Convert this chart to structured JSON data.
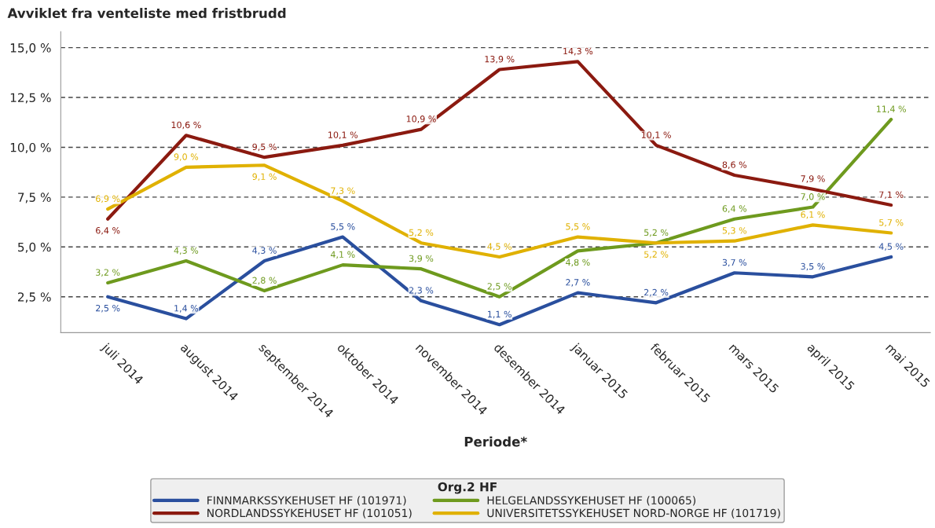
{
  "chart_data": {
    "type": "line",
    "title": "Avviklet fra venteliste med fristbrudd",
    "xlabel": "Periode*",
    "legend_title": "Org.2 HF",
    "categories": [
      "juli 2014",
      "august 2014",
      "september 2014",
      "oktober 2014",
      "november 2014",
      "desember 2014",
      "januar 2015",
      "februar 2015",
      "mars 2015",
      "april 2015",
      "mai 2015"
    ],
    "series": [
      {
        "name": "FINNMARKSSYKEHUSET HF (101971)",
        "color": "#2a4f9e",
        "values": [
          2.5,
          1.4,
          4.3,
          5.5,
          2.3,
          1.1,
          2.7,
          2.2,
          3.7,
          3.5,
          4.5
        ],
        "value_labels": [
          "2,5 %",
          "1,4 %",
          "4,3 %",
          "5,5 %",
          "2,3 %",
          "1,1 %",
          "2,7 %",
          "2,2 %",
          "3,7 %",
          "3,5 %",
          "4,5 %"
        ]
      },
      {
        "name": "HELGELANDSSYKEHUSET HF (100065)",
        "color": "#6e9a1e",
        "values": [
          3.2,
          4.3,
          2.8,
          4.1,
          3.9,
          2.5,
          4.8,
          5.2,
          6.4,
          7.0,
          11.4
        ],
        "value_labels": [
          "3,2 %",
          "4,3 %",
          "2,8 %",
          "4,1 %",
          "3,9 %",
          "2,5 %",
          "4,8 %",
          "5,2 %",
          "6,4 %",
          "7,0 %",
          "11,4 %"
        ]
      },
      {
        "name": "NORDLANDSSYKEHUSET HF (101051)",
        "color": "#8b1a10",
        "values": [
          6.4,
          10.6,
          9.5,
          10.1,
          10.9,
          13.9,
          14.3,
          10.1,
          8.6,
          7.9,
          7.1
        ],
        "value_labels": [
          "6,4 %",
          "10,6 %",
          "9,5 %",
          "10,1 %",
          "10,9 %",
          "13,9 %",
          "14,3 %",
          "10,1 %",
          "8,6 %",
          "7,9 %",
          "7,1 %"
        ]
      },
      {
        "name": "UNIVERSITETSSYKEHUSET NORD-NORGE HF (101719)",
        "color": "#e0b100",
        "values": [
          6.9,
          9.0,
          9.1,
          7.3,
          5.2,
          4.5,
          5.5,
          5.2,
          5.3,
          6.1,
          5.7
        ],
        "value_labels": [
          "6,9 %",
          "9,0 %",
          "9,1 %",
          "7,3 %",
          "5,2 %",
          "4,5 %",
          "5,5 %",
          "5,2 %",
          "5,3 %",
          "6,1 %",
          "5,7 %"
        ]
      }
    ],
    "ylim": [
      0.7,
      15.8
    ],
    "yticks": [
      {
        "value": 2.5,
        "label": "2,5 %"
      },
      {
        "value": 5.0,
        "label": "5,0 %"
      },
      {
        "value": 7.5,
        "label": "7,5 %"
      },
      {
        "value": 10.0,
        "label": "10,0 %"
      },
      {
        "value": 12.5,
        "label": "12,5 %"
      },
      {
        "value": 15.0,
        "label": "15,0 %"
      }
    ],
    "grid": "y",
    "legend": "bottom",
    "marker": "none",
    "line_style": "solid"
  }
}
